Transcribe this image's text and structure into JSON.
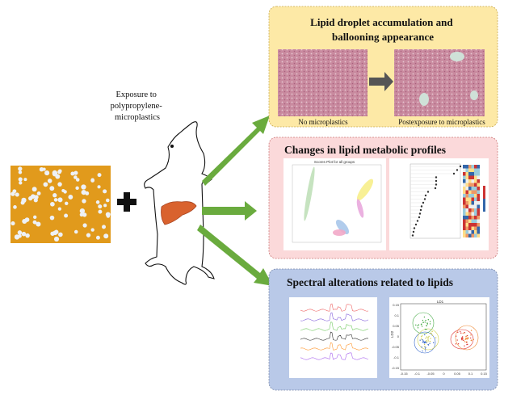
{
  "left": {
    "exposure_label": [
      "Exposure to",
      "polypropylene-",
      "microplastics"
    ]
  },
  "panels": {
    "histology": {
      "title": [
        "Lipid droplet accumulation and",
        "ballooning appearance"
      ],
      "caption_left": "No microplastics",
      "caption_right": "Postexposure to microplastics",
      "bg": "#fde9a6"
    },
    "metabolic": {
      "title": "Changes in lipid metabolic profiles",
      "scores_plot_title": "Scores Plot for all groups",
      "bg": "#fbd9da"
    },
    "spectral": {
      "title": "Spectral alterations related to lipids",
      "lda_title": "LD1",
      "lda_ylabel": "LD2",
      "lda_yticks": [
        "0.15",
        "0.1",
        "0.05",
        "0",
        "-0.05",
        "-0.1",
        "-0.15"
      ],
      "lda_xticks": [
        "-0.15",
        "-0.1",
        "-0.05",
        "0",
        "0.05",
        "0.1",
        "0.15"
      ],
      "bg": "#b9c9e8"
    }
  },
  "colors": {
    "arrow_green": "#6aab3e",
    "microplastic_bg": "#e19a1c",
    "liver": "#d9622e"
  }
}
